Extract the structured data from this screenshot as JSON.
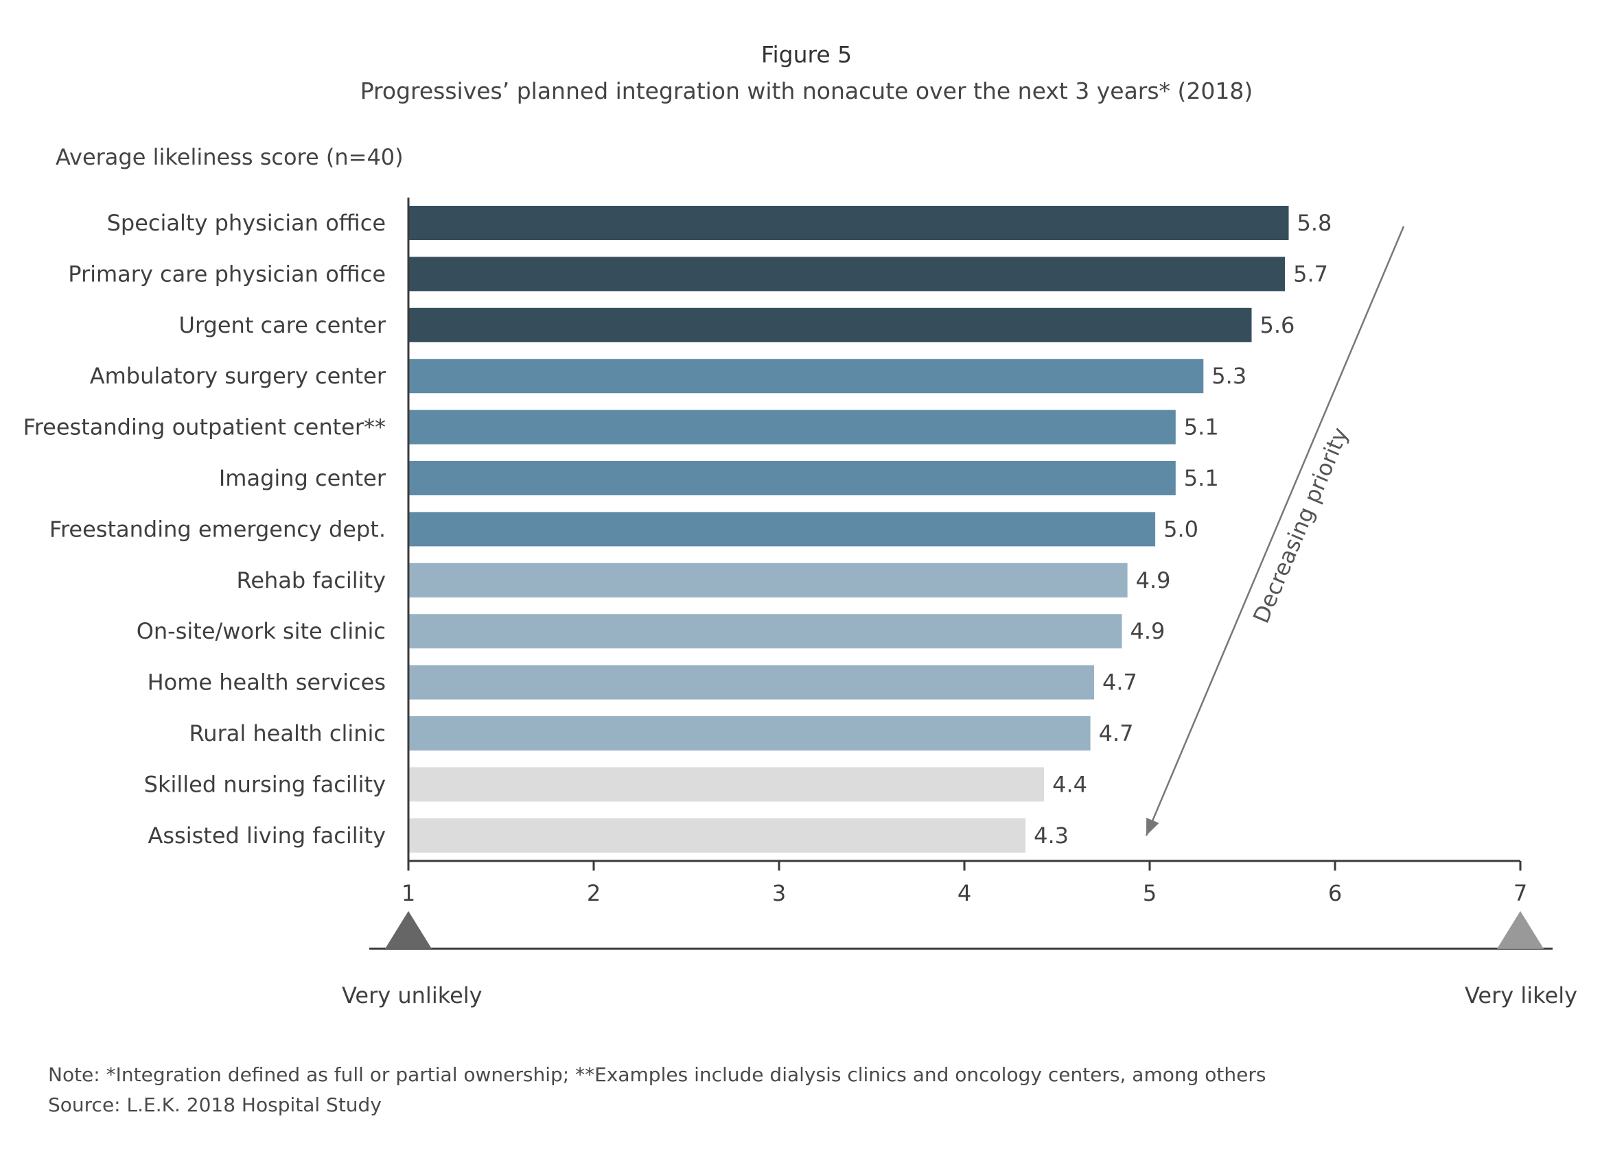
{
  "figure": {
    "label": "Figure 5",
    "title": "Progressives’ planned integration with nonacute over the next 3 years* (2018)"
  },
  "chart_data": {
    "type": "bar",
    "orientation": "horizontal",
    "ylabel": "Average likeliness score (n=40)",
    "categories": [
      "Specialty physician office",
      "Primary care physician office",
      "Urgent care center",
      "Ambulatory surgery center",
      "Freestanding outpatient center**",
      "Imaging center",
      "Freestanding emergency dept.",
      "Rehab facility",
      "On-site/work site clinic",
      "Home health services",
      "Rural health clinic",
      "Skilled nursing facility",
      "Assisted living facility"
    ],
    "values": [
      5.75,
      5.73,
      5.55,
      5.29,
      5.14,
      5.14,
      5.03,
      4.88,
      4.85,
      4.7,
      4.68,
      4.43,
      4.33
    ],
    "data_labels": [
      "5.8",
      "5.7",
      "5.6",
      "5.3",
      "5.1",
      "5.1",
      "5.0",
      "4.9",
      "4.9",
      "4.7",
      "4.7",
      "4.4",
      "4.3"
    ],
    "bar_colors": [
      "#364e5c",
      "#364e5c",
      "#364e5c",
      "#5f8aa5",
      "#5f8aa5",
      "#5f8aa5",
      "#5f8aa5",
      "#98b2c4",
      "#98b2c4",
      "#98b2c4",
      "#98b2c4",
      "#dcdcdc",
      "#dcdcdc"
    ],
    "xlim": [
      1,
      7
    ],
    "xticks": [
      "1",
      "2",
      "3",
      "4",
      "5",
      "6",
      "7"
    ],
    "grid": false,
    "legend": "none",
    "annotation": "Decreasing priority",
    "scale": {
      "left_label": "Very unlikely",
      "right_label": "Very likely",
      "left_color": "#666666",
      "right_color": "#999999"
    }
  },
  "notes": {
    "note": "Note: *Integration defined as full or partial ownership; **Examples include dialysis clinics and oncology centers, among others",
    "source": "Source: L.E.K. 2018 Hospital Study"
  }
}
